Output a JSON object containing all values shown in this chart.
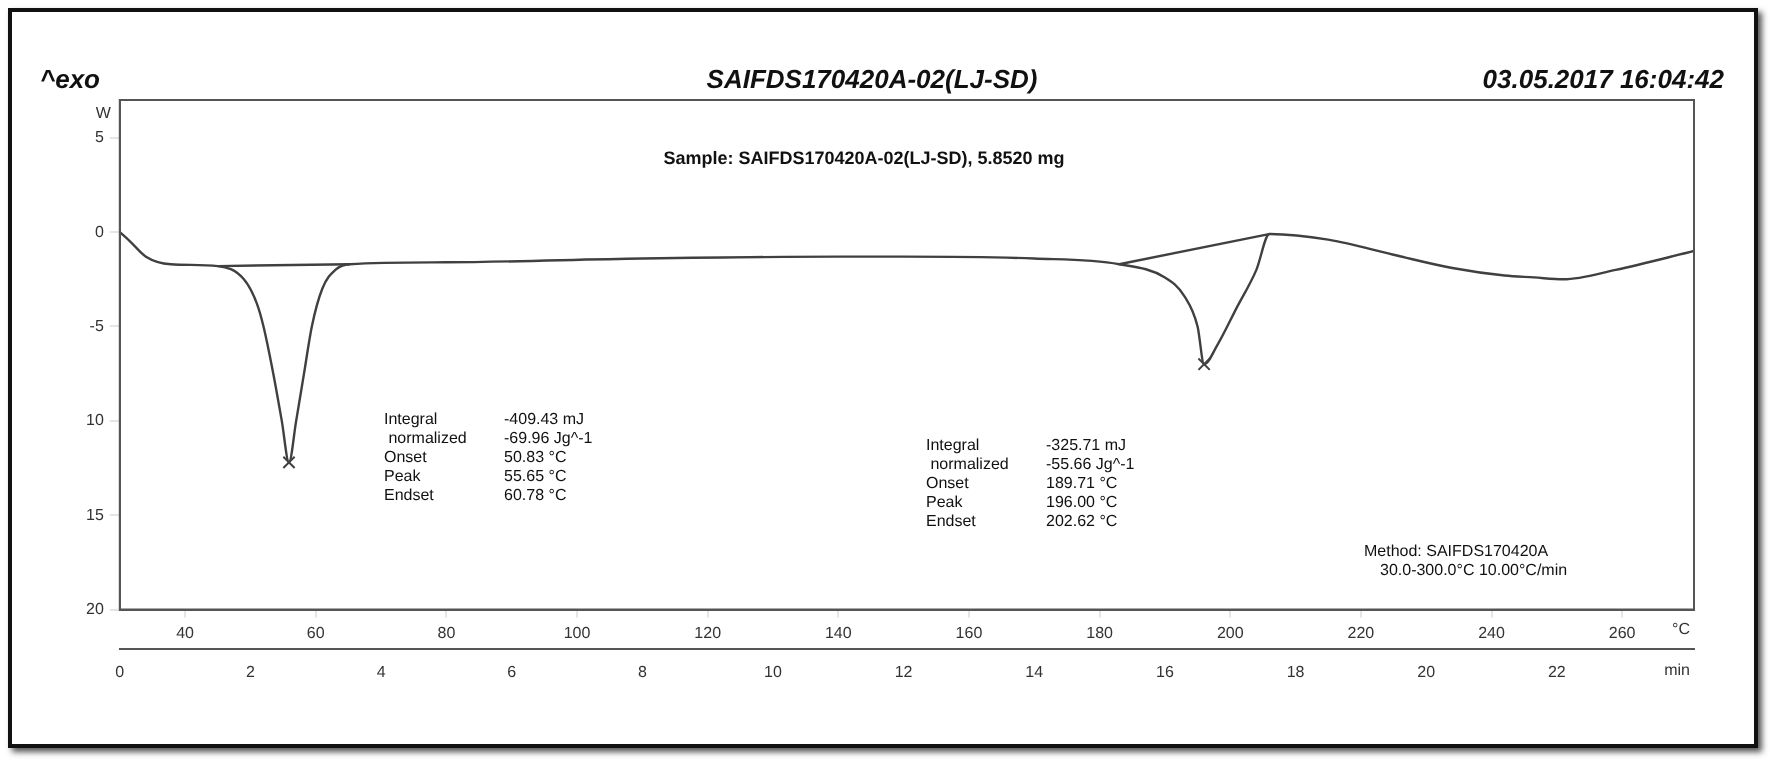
{
  "chart_data": {
    "type": "line",
    "title": "SAIFDS170420A-02(LJ-SD)",
    "subtitle": "Sample: SAIFDS170420A-02(LJ-SD), 5.8520 mg",
    "ylabel": "W",
    "xlabel": "min",
    "x2label": "°C",
    "annotations": [
      "^exo",
      "03.05.2017 16:04:42",
      "Integral  -409.43 mJ\n normalized  -69.96 Jg^-1\nOnset  50.83 °C\nPeak  55.65 °C\nEndset  60.78 °C",
      "Integral  -325.71 mJ\n normalized  -55.66 Jg^-1\nOnset  189.71 °C\nPeak  196.00 °C\nEndset  202.62 °C",
      "Method: SAIFDS170420A\n30.0-300.0°C 10.00°C/min"
    ],
    "series": [
      {
        "color": "#404040",
        "x": [
          0,
          0.16,
          0.4,
          0.78,
          1.5,
          1.9,
          2.1,
          2.2,
          2.35,
          2.48,
          2.59,
          2.7,
          2.82,
          2.94,
          3.1,
          3.3,
          3.52,
          5,
          8,
          11,
          12,
          14,
          15.3,
          16,
          16.3,
          16.5,
          16.6,
          16.8,
          17.1,
          17.4,
          17.6,
          18.5,
          19.5,
          20.4,
          21.2,
          21.65,
          22.1,
          22.9,
          24.1
        ],
        "values": [
          0,
          -0.5,
          -1.3,
          -1.7,
          -1.8,
          -2.5,
          -3.8,
          -5,
          -7.5,
          -10,
          -12.2,
          -10,
          -7.5,
          -5,
          -3,
          -2,
          -1.7,
          -1.6,
          -1.4,
          -1.3,
          -1.3,
          -1.4,
          -1.7,
          -2.4,
          -3.4,
          -5,
          -7,
          -6,
          -4,
          -2,
          -0.1,
          -0.4,
          -1.2,
          -1.9,
          -2.3,
          -2.4,
          -2.5,
          -2.0,
          -1.0
        ]
      },
      {
        "type": "line",
        "color": "#404040",
        "x": [
          1.5,
          3.52
        ],
        "values": [
          -1.8,
          -1.7
        ]
      },
      {
        "type": "line",
        "color": "#404040",
        "x": [
          15.3,
          17.6
        ],
        "values": [
          -1.7,
          -0.1
        ]
      },
      {
        "type": "scatter",
        "color": "#404040",
        "marker": "cross",
        "x": [
          2.59,
          16.6
        ],
        "values": [
          -12.2,
          -7
        ]
      }
    ],
    "xlim": [
      0,
      24.1
    ],
    "xticks": [
      0,
      2,
      4,
      6,
      8,
      10,
      12,
      14,
      16,
      18,
      20,
      22
    ],
    "x2lim": [
      30,
      271
    ],
    "x2ticks": [
      40,
      60,
      80,
      100,
      120,
      140,
      160,
      180,
      200,
      220,
      240,
      260
    ],
    "ylim": [
      -20,
      7
    ],
    "yticks": [
      5,
      0,
      -5,
      {
        "value": -10,
        "label": "10"
      },
      {
        "value": -15,
        "label": "15"
      },
      {
        "value": -20,
        "label": "20"
      }
    ],
    "grid": false,
    "legend": false
  }
}
